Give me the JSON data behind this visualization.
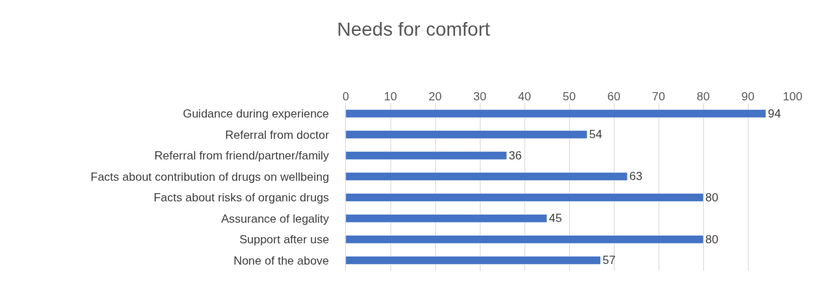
{
  "chart_data": {
    "type": "bar",
    "orientation": "horizontal",
    "title": "Needs for comfort",
    "categories": [
      "Guidance during experience",
      "Referral from doctor",
      "Referral from friend/partner/family",
      "Facts about contribution of drugs on wellbeing",
      "Facts about risks of organic drugs",
      "Assurance of legality",
      "Support after use",
      "None of the above"
    ],
    "values": [
      94,
      54,
      36,
      63,
      80,
      45,
      80,
      57
    ],
    "color": "#4472c4",
    "xlim": [
      0,
      100
    ],
    "xticks": [
      0,
      10,
      20,
      30,
      40,
      50,
      60,
      70,
      80,
      90,
      100
    ],
    "grid": "x",
    "data_labels": true
  }
}
